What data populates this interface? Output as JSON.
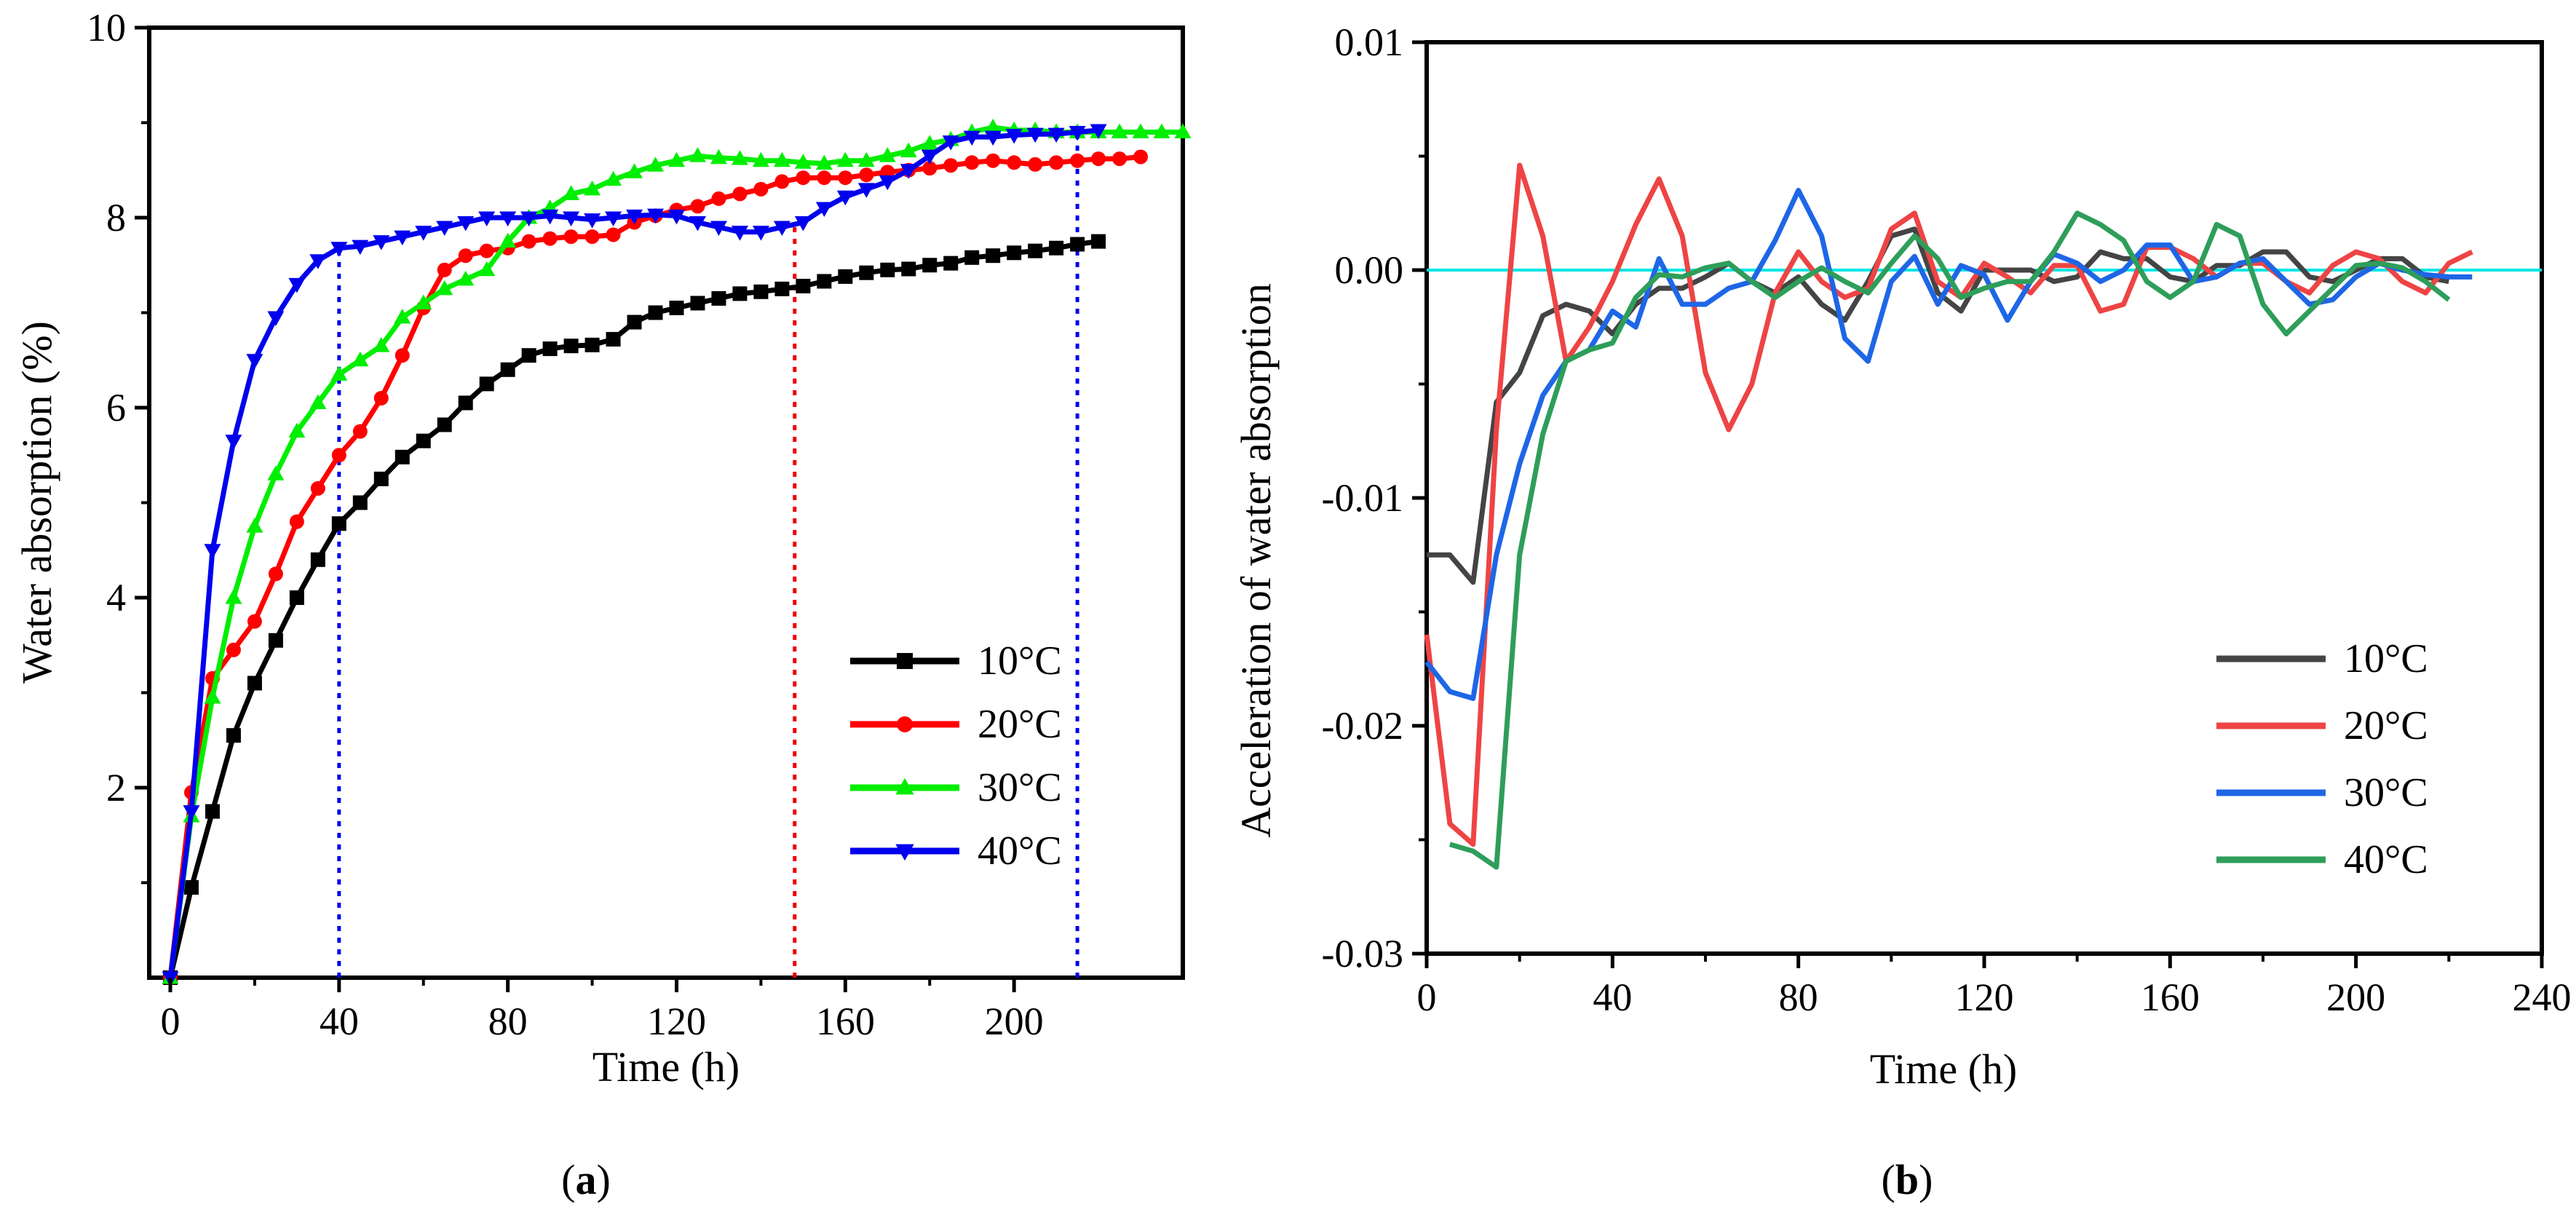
{
  "panel_labels": {
    "a": {
      "open": "(",
      "letter": "a",
      "close": ")"
    },
    "b": {
      "open": "(",
      "letter": "b",
      "close": ")"
    }
  },
  "chart_data": [
    {
      "id": "a",
      "type": "line",
      "title": "",
      "xlabel": "Time (h)",
      "ylabel": "Water absorption (%)",
      "xlim": [
        -5,
        240
      ],
      "ylim": [
        0,
        10
      ],
      "xticks": [
        0,
        40,
        80,
        120,
        160,
        200
      ],
      "xtick_labels": [
        "0",
        "40",
        "80",
        "120",
        "160",
        "200"
      ],
      "yticks": [
        2,
        4,
        6,
        8,
        10
      ],
      "ytick_labels": [
        "2",
        "4",
        "6",
        "8",
        "10"
      ],
      "legend_position": "lower-right",
      "vlines": [
        {
          "x": 40,
          "y": [
            0,
            7.65
          ],
          "color": "#0000ee",
          "style": "dotted"
        },
        {
          "x": 148,
          "y": [
            0,
            7.9
          ],
          "color": "#ee0000",
          "style": "dotted"
        },
        {
          "x": 215,
          "y": [
            0,
            8.9
          ],
          "color": "#0000ee",
          "style": "dotted"
        }
      ],
      "series": [
        {
          "name": "10°C",
          "color": "#000000",
          "marker": "square",
          "x": [
            0,
            5,
            10,
            15,
            20,
            25,
            30,
            35,
            40,
            45,
            50,
            55,
            60,
            65,
            70,
            75,
            80,
            85,
            90,
            95,
            100,
            105,
            110,
            115,
            120,
            125,
            130,
            135,
            140,
            145,
            150,
            155,
            160,
            165,
            170,
            175,
            180,
            185,
            190,
            195,
            200,
            205,
            210,
            215,
            220
          ],
          "y": [
            0,
            0.95,
            1.75,
            2.55,
            3.1,
            3.55,
            4.0,
            4.4,
            4.78,
            5.0,
            5.25,
            5.48,
            5.65,
            5.82,
            6.05,
            6.25,
            6.4,
            6.55,
            6.62,
            6.65,
            6.66,
            6.72,
            6.9,
            7.0,
            7.05,
            7.1,
            7.15,
            7.2,
            7.22,
            7.25,
            7.28,
            7.33,
            7.38,
            7.42,
            7.45,
            7.46,
            7.5,
            7.52,
            7.58,
            7.6,
            7.63,
            7.65,
            7.68,
            7.72,
            7.75
          ]
        },
        {
          "name": "20°C",
          "color": "#ff0000",
          "marker": "circle",
          "x": [
            0,
            5,
            10,
            15,
            20,
            25,
            30,
            35,
            40,
            45,
            50,
            55,
            60,
            65,
            70,
            75,
            80,
            85,
            90,
            95,
            100,
            105,
            110,
            115,
            120,
            125,
            130,
            135,
            140,
            145,
            150,
            155,
            160,
            165,
            170,
            175,
            180,
            185,
            190,
            195,
            200,
            205,
            210,
            215,
            220,
            225,
            230
          ],
          "y": [
            0,
            1.95,
            3.15,
            3.45,
            3.75,
            4.25,
            4.8,
            5.15,
            5.5,
            5.75,
            6.1,
            6.55,
            7.05,
            7.45,
            7.6,
            7.65,
            7.68,
            7.75,
            7.78,
            7.8,
            7.8,
            7.82,
            7.95,
            8.02,
            8.08,
            8.12,
            8.2,
            8.25,
            8.3,
            8.38,
            8.42,
            8.42,
            8.42,
            8.45,
            8.48,
            8.5,
            8.52,
            8.55,
            8.58,
            8.6,
            8.58,
            8.56,
            8.58,
            8.6,
            8.62,
            8.62,
            8.64
          ]
        },
        {
          "name": "30°C",
          "color": "#00ee00",
          "marker": "triangle-up",
          "x": [
            0,
            5,
            10,
            15,
            20,
            25,
            30,
            35,
            40,
            45,
            50,
            55,
            60,
            65,
            70,
            75,
            80,
            85,
            90,
            95,
            100,
            105,
            110,
            115,
            120,
            125,
            130,
            135,
            140,
            145,
            150,
            155,
            160,
            165,
            170,
            175,
            180,
            185,
            190,
            195,
            200,
            205,
            210,
            215,
            220,
            225,
            230,
            235,
            240
          ],
          "y": [
            0,
            1.7,
            2.95,
            4.0,
            4.75,
            5.3,
            5.75,
            6.05,
            6.35,
            6.5,
            6.65,
            6.95,
            7.1,
            7.25,
            7.35,
            7.45,
            7.75,
            8.0,
            8.1,
            8.25,
            8.3,
            8.4,
            8.48,
            8.55,
            8.6,
            8.65,
            8.63,
            8.62,
            8.6,
            8.6,
            8.58,
            8.57,
            8.6,
            8.6,
            8.65,
            8.7,
            8.78,
            8.82,
            8.9,
            8.95,
            8.92,
            8.92,
            8.9,
            8.9,
            8.9,
            8.9,
            8.9,
            8.9,
            8.9
          ]
        },
        {
          "name": "40°C",
          "color": "#0000ee",
          "marker": "triangle-down",
          "x": [
            0,
            5,
            10,
            15,
            20,
            25,
            30,
            35,
            40,
            45,
            50,
            55,
            60,
            65,
            70,
            75,
            80,
            85,
            90,
            95,
            100,
            105,
            110,
            115,
            120,
            125,
            130,
            135,
            140,
            145,
            150,
            155,
            160,
            165,
            170,
            175,
            180,
            185,
            190,
            195,
            200,
            205,
            210,
            215,
            220
          ],
          "y": [
            0,
            1.75,
            4.5,
            5.65,
            6.5,
            6.95,
            7.3,
            7.55,
            7.68,
            7.7,
            7.75,
            7.8,
            7.85,
            7.9,
            7.95,
            8.0,
            8.0,
            8.0,
            8.02,
            8.0,
            7.98,
            8.0,
            8.02,
            8.03,
            8.02,
            7.95,
            7.9,
            7.85,
            7.85,
            7.9,
            7.95,
            8.1,
            8.22,
            8.3,
            8.38,
            8.5,
            8.65,
            8.8,
            8.85,
            8.85,
            8.87,
            8.88,
            8.88,
            8.9,
            8.92
          ]
        }
      ]
    },
    {
      "id": "b",
      "type": "line",
      "title": "",
      "xlabel": "Time (h)",
      "ylabel": "Acceleration of water absorption",
      "xlim": [
        0,
        240
      ],
      "ylim": [
        -0.03,
        0.01
      ],
      "xticks": [
        0,
        40,
        80,
        120,
        160,
        200,
        240
      ],
      "xtick_labels": [
        "0",
        "40",
        "80",
        "120",
        "160",
        "200",
        "240"
      ],
      "yticks": [
        -0.03,
        -0.02,
        -0.01,
        0.0,
        0.01
      ],
      "ytick_labels": [
        "-0.03",
        "-0.02",
        "-0.01",
        "0.00",
        "0.01"
      ],
      "hline": {
        "y": 0.0,
        "color": "#00e5e5"
      },
      "legend_position": "lower-right",
      "series": [
        {
          "name": "10°C",
          "color": "#444444",
          "x": [
            0,
            5,
            10,
            15,
            20,
            25,
            30,
            35,
            40,
            45,
            50,
            55,
            60,
            65,
            70,
            75,
            80,
            85,
            90,
            95,
            100,
            105,
            110,
            115,
            120,
            125,
            130,
            135,
            140,
            145,
            150,
            155,
            160,
            165,
            170,
            175,
            180,
            185,
            190,
            195,
            200,
            205,
            210,
            215,
            220
          ],
          "y": [
            -0.0125,
            -0.0125,
            -0.0137,
            -0.0058,
            -0.0045,
            -0.002,
            -0.0015,
            -0.0018,
            -0.0028,
            -0.0015,
            -0.0008,
            -0.0008,
            -0.0003,
            0.0003,
            -0.0005,
            -0.001,
            -0.0003,
            -0.0015,
            -0.0022,
            -0.0005,
            0.0015,
            0.0018,
            -0.001,
            -0.0018,
            0.0,
            0.0,
            0.0,
            -0.0005,
            -0.0003,
            0.0008,
            0.0005,
            0.0005,
            -0.0003,
            -0.0005,
            0.0002,
            0.0002,
            0.0008,
            0.0008,
            -0.0003,
            -0.0005,
            0.0,
            0.0005,
            0.0005,
            -0.0003,
            -0.0005
          ]
        },
        {
          "name": "20°C",
          "color": "#ee4444",
          "x": [
            0,
            5,
            10,
            15,
            20,
            25,
            30,
            35,
            40,
            45,
            50,
            55,
            60,
            65,
            70,
            75,
            80,
            85,
            90,
            95,
            100,
            105,
            110,
            115,
            120,
            125,
            130,
            135,
            140,
            145,
            150,
            155,
            160,
            165,
            170,
            175,
            180,
            185,
            190,
            195,
            200,
            205,
            210,
            215,
            220,
            225
          ],
          "y": [
            -0.016,
            -0.0243,
            -0.0252,
            -0.007,
            0.0046,
            0.0015,
            -0.004,
            -0.0025,
            -0.0005,
            0.002,
            0.004,
            0.0015,
            -0.0045,
            -0.007,
            -0.005,
            -0.001,
            0.0008,
            -0.0005,
            -0.0012,
            -0.0008,
            0.0018,
            0.0025,
            -0.0005,
            -0.0012,
            0.0003,
            -0.0003,
            -0.001,
            0.0002,
            0.0002,
            -0.0018,
            -0.0015,
            0.001,
            0.001,
            0.0005,
            -0.0003,
            0.0003,
            0.0003,
            -0.0005,
            -0.001,
            0.0002,
            0.0008,
            0.0005,
            -0.0005,
            -0.001,
            0.0003,
            0.0008
          ]
        },
        {
          "name": "30°C",
          "color": "#1e66e6",
          "x": [
            0,
            5,
            10,
            15,
            20,
            25,
            30,
            35,
            40,
            45,
            50,
            55,
            60,
            65,
            70,
            75,
            80,
            85,
            90,
            95,
            100,
            105,
            110,
            115,
            120,
            125,
            130,
            135,
            140,
            145,
            150,
            155,
            160,
            165,
            170,
            175,
            180,
            185,
            190,
            195,
            200,
            205,
            210,
            215,
            220,
            225
          ],
          "y": [
            -0.0172,
            -0.0185,
            -0.0188,
            -0.0125,
            -0.0085,
            -0.0055,
            -0.004,
            -0.0035,
            -0.0018,
            -0.0025,
            0.0005,
            -0.0015,
            -0.0015,
            -0.0008,
            -0.0005,
            0.0013,
            0.0035,
            0.0015,
            -0.003,
            -0.004,
            -0.0005,
            0.0006,
            -0.0015,
            0.0002,
            -0.0002,
            -0.0022,
            -0.0005,
            0.0007,
            0.0003,
            -0.0005,
            0.0,
            0.0011,
            0.0011,
            -0.0005,
            -0.0003,
            0.0003,
            0.0005,
            -0.0005,
            -0.0015,
            -0.0013,
            -0.0003,
            0.0003,
            0.0,
            -0.0002,
            -0.0003,
            -0.0003
          ]
        },
        {
          "name": "40°C",
          "color": "#2e9e5a",
          "x": [
            5,
            10,
            15,
            20,
            25,
            30,
            35,
            40,
            45,
            50,
            55,
            60,
            65,
            70,
            75,
            80,
            85,
            90,
            95,
            100,
            105,
            110,
            115,
            120,
            125,
            130,
            135,
            140,
            145,
            150,
            155,
            160,
            165,
            170,
            175,
            180,
            185,
            190,
            195,
            200,
            205,
            210,
            215,
            220
          ],
          "y": [
            -0.0252,
            -0.0255,
            -0.0262,
            -0.0125,
            -0.0072,
            -0.004,
            -0.0035,
            -0.0032,
            -0.0012,
            -0.0002,
            -0.0003,
            0.0001,
            0.0003,
            -0.0005,
            -0.0012,
            -0.0005,
            0.0001,
            -0.0005,
            -0.001,
            0.0003,
            0.0015,
            0.0005,
            -0.0012,
            -0.0008,
            -0.0005,
            -0.0005,
            0.0008,
            0.0025,
            0.002,
            0.0013,
            -0.0005,
            -0.0012,
            -0.0005,
            0.002,
            0.0015,
            -0.0015,
            -0.0028,
            -0.0018,
            -0.0008,
            0.0002,
            0.0003,
            0.0001,
            -0.0005,
            -0.0013
          ]
        }
      ]
    }
  ]
}
